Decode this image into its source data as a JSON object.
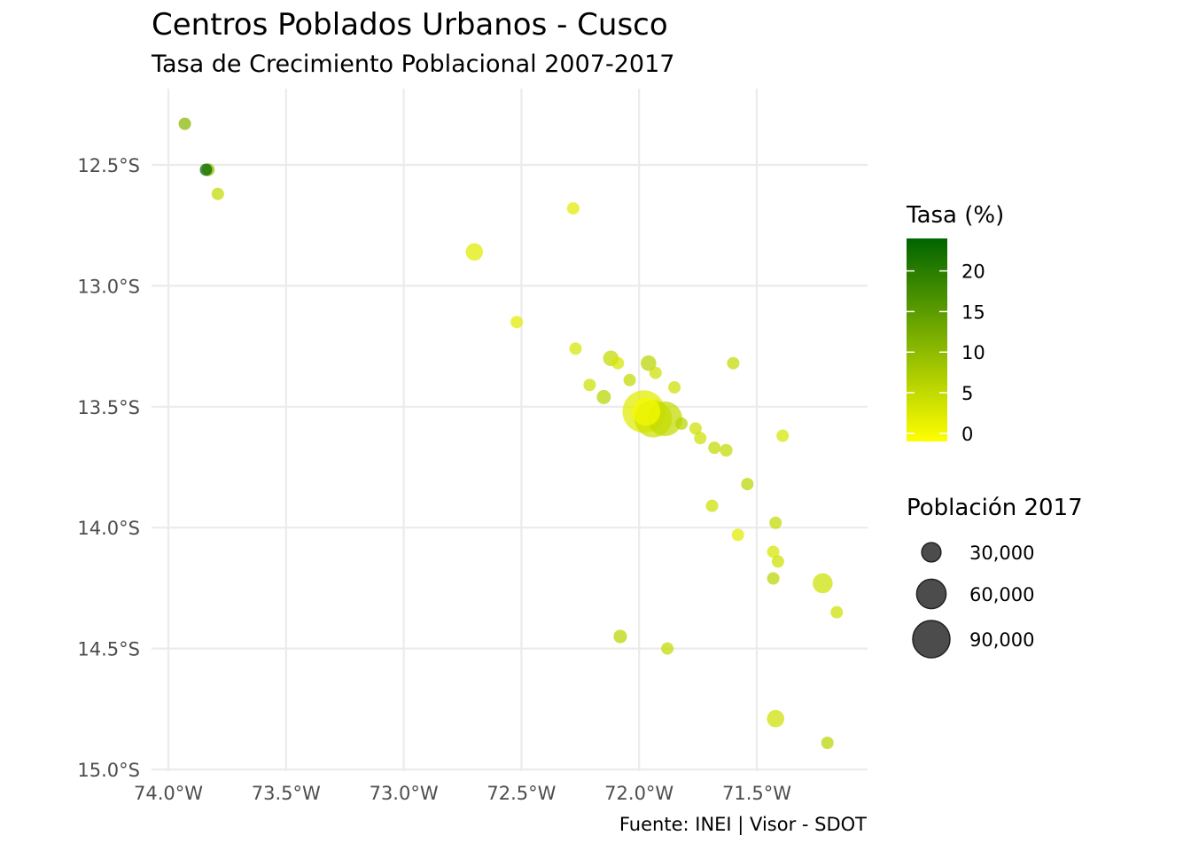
{
  "title": "Centros Poblados Urbanos - Cusco",
  "subtitle": "Tasa de Crecimiento Poblacional 2007-2017",
  "caption": "Fuente: INEI | Visor - SDOT",
  "chart_data": {
    "type": "scatter",
    "title": "Centros Poblados Urbanos - Cusco",
    "subtitle": "Tasa de Crecimiento Poblacional 2007-2017",
    "xlabel": "",
    "ylabel": "",
    "x_unit": "longitude (degrees W, negative)",
    "y_unit": "latitude (degrees S, negative)",
    "xlim": [
      -74.05,
      -71.13
    ],
    "ylim": [
      -15.0,
      -12.1
    ],
    "grid": true,
    "x_ticks": [
      {
        "value": -74.0,
        "label": "74.0°W"
      },
      {
        "value": -73.5,
        "label": "73.5°W"
      },
      {
        "value": -73.0,
        "label": "73.0°W"
      },
      {
        "value": -72.5,
        "label": "72.5°W"
      },
      {
        "value": -72.0,
        "label": "72.0°W"
      },
      {
        "value": -71.5,
        "label": "71.5°W"
      }
    ],
    "y_ticks": [
      {
        "value": -12.5,
        "label": "12.5°S"
      },
      {
        "value": -13.0,
        "label": "13.0°S"
      },
      {
        "value": -13.5,
        "label": "13.5°S"
      },
      {
        "value": -14.0,
        "label": "14.0°S"
      },
      {
        "value": -14.5,
        "label": "14.5°S"
      },
      {
        "value": -15.0,
        "label": "15.0°S"
      }
    ],
    "color_legend": {
      "title": "Tasa (%)",
      "min": -1,
      "max": 24,
      "low_color": "#FFFF00",
      "high_color": "#006400",
      "ticks": [
        {
          "value": 0,
          "label": "0"
        },
        {
          "value": 5,
          "label": "5"
        },
        {
          "value": 10,
          "label": "10"
        },
        {
          "value": 15,
          "label": "15"
        },
        {
          "value": 20,
          "label": "20"
        }
      ]
    },
    "size_legend": {
      "title": "Población 2017",
      "point_color": "#333333",
      "entries": [
        {
          "value": 30000,
          "label": "30,000"
        },
        {
          "value": 60000,
          "label": "60,000"
        },
        {
          "value": 90000,
          "label": "90,000"
        }
      ]
    },
    "points": [
      {
        "lon": -73.93,
        "lat": -12.33,
        "pop": 2000,
        "rate": 11
      },
      {
        "lon": -73.83,
        "lat": -12.52,
        "pop": 8000,
        "rate": 9
      },
      {
        "lon": -73.84,
        "lat": -12.52,
        "pop": 3000,
        "rate": 24
      },
      {
        "lon": -73.79,
        "lat": -12.62,
        "pop": 5000,
        "rate": 5
      },
      {
        "lon": -72.28,
        "lat": -12.68,
        "pop": 2000,
        "rate": 2
      },
      {
        "lon": -72.7,
        "lat": -12.86,
        "pop": 15000,
        "rate": 2
      },
      {
        "lon": -72.52,
        "lat": -13.15,
        "pop": 4000,
        "rate": 2
      },
      {
        "lon": -72.27,
        "lat": -13.26,
        "pop": 3000,
        "rate": 3
      },
      {
        "lon": -72.12,
        "lat": -13.3,
        "pop": 12000,
        "rate": 5
      },
      {
        "lon": -72.09,
        "lat": -13.32,
        "pop": 3000,
        "rate": 3
      },
      {
        "lon": -71.96,
        "lat": -13.32,
        "pop": 12000,
        "rate": 6
      },
      {
        "lon": -71.93,
        "lat": -13.36,
        "pop": 2000,
        "rate": 4
      },
      {
        "lon": -71.6,
        "lat": -13.32,
        "pop": 5000,
        "rate": 5
      },
      {
        "lon": -72.04,
        "lat": -13.39,
        "pop": 4000,
        "rate": 5
      },
      {
        "lon": -72.21,
        "lat": -13.41,
        "pop": 3000,
        "rate": 4
      },
      {
        "lon": -71.85,
        "lat": -13.42,
        "pop": 4000,
        "rate": 4
      },
      {
        "lon": -72.15,
        "lat": -13.46,
        "pop": 10000,
        "rate": 6
      },
      {
        "lon": -71.89,
        "lat": -13.55,
        "pop": 60000,
        "rate": 5
      },
      {
        "lon": -71.94,
        "lat": -13.55,
        "pop": 70000,
        "rate": 4
      },
      {
        "lon": -71.98,
        "lat": -13.52,
        "pop": 90000,
        "rate": 2
      },
      {
        "lon": -71.97,
        "lat": -13.52,
        "pop": 40000,
        "rate": 0
      },
      {
        "lon": -71.82,
        "lat": -13.57,
        "pop": 4000,
        "rate": 6
      },
      {
        "lon": -71.76,
        "lat": -13.59,
        "pop": 5000,
        "rate": 4
      },
      {
        "lon": -71.74,
        "lat": -13.63,
        "pop": 5000,
        "rate": 4
      },
      {
        "lon": -71.68,
        "lat": -13.67,
        "pop": 6000,
        "rate": 5
      },
      {
        "lon": -71.63,
        "lat": -13.68,
        "pop": 8000,
        "rate": 5
      },
      {
        "lon": -71.39,
        "lat": -13.62,
        "pop": 2000,
        "rate": 3
      },
      {
        "lon": -71.54,
        "lat": -13.82,
        "pop": 2000,
        "rate": 6
      },
      {
        "lon": -71.69,
        "lat": -13.91,
        "pop": 3000,
        "rate": 4
      },
      {
        "lon": -71.42,
        "lat": -13.98,
        "pop": 5000,
        "rate": 5
      },
      {
        "lon": -71.58,
        "lat": -14.03,
        "pop": 4000,
        "rate": 2
      },
      {
        "lon": -71.43,
        "lat": -14.1,
        "pop": 2000,
        "rate": 3
      },
      {
        "lon": -71.41,
        "lat": -14.14,
        "pop": 3000,
        "rate": 4
      },
      {
        "lon": -71.43,
        "lat": -14.21,
        "pop": 3000,
        "rate": 6
      },
      {
        "lon": -71.22,
        "lat": -14.23,
        "pop": 20000,
        "rate": 4
      },
      {
        "lon": -71.16,
        "lat": -14.35,
        "pop": 3000,
        "rate": 4
      },
      {
        "lon": -72.08,
        "lat": -14.45,
        "pop": 9000,
        "rate": 6
      },
      {
        "lon": -71.88,
        "lat": -14.5,
        "pop": 2000,
        "rate": 5
      },
      {
        "lon": -71.42,
        "lat": -14.79,
        "pop": 15000,
        "rate": 4
      },
      {
        "lon": -71.2,
        "lat": -14.89,
        "pop": 2000,
        "rate": 6
      }
    ]
  }
}
